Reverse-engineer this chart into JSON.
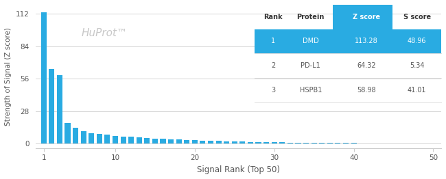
{
  "xlabel": "Signal Rank (Top 50)",
  "ylabel": "Strength of Signal (Z score)",
  "watermark": "HuProt™",
  "xlim": [
    0,
    51
  ],
  "ylim": [
    -4,
    120
  ],
  "yticks": [
    0,
    28,
    56,
    84,
    112
  ],
  "xticks": [
    1,
    10,
    20,
    30,
    40,
    50
  ],
  "bar_color": "#29ABE2",
  "background_color": "#ffffff",
  "bar_values": [
    113.28,
    64.32,
    58.98,
    18.0,
    13.5,
    10.5,
    9.0,
    8.2,
    7.4,
    6.8,
    6.2,
    5.7,
    5.2,
    4.8,
    4.4,
    4.0,
    3.7,
    3.4,
    3.1,
    2.8,
    2.6,
    2.4,
    2.2,
    2.0,
    1.8,
    1.6,
    1.45,
    1.3,
    1.15,
    1.0,
    0.9,
    0.8,
    0.72,
    0.65,
    0.58,
    0.52,
    0.47,
    0.42,
    0.38,
    0.34,
    0.3,
    0.27,
    0.24,
    0.21,
    0.19,
    0.17,
    0.15,
    0.13,
    0.11,
    0.1
  ],
  "table_data": [
    [
      "Rank",
      "Protein",
      "Z score",
      "S score"
    ],
    [
      "1",
      "DMD",
      "113.28",
      "48.96"
    ],
    [
      "2",
      "PD-L1",
      "64.32",
      "5.34"
    ],
    [
      "3",
      "HSPB1",
      "58.98",
      "41.01"
    ]
  ],
  "table_highlight_row": 1,
  "table_highlight_color": "#29ABE2",
  "table_text_color": "#555555",
  "table_header_text_color": "#333333",
  "grid_color": "#cccccc",
  "watermark_color": "#c8c8c8",
  "row_sep_color": "#dddddd"
}
